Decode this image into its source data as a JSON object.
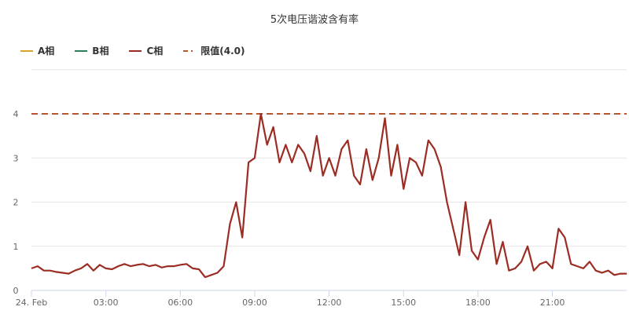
{
  "chart_data": {
    "type": "line",
    "title": "5次电压谐波含有率",
    "ylim": [
      0,
      5
    ],
    "yticks": [
      "0",
      "1",
      "2",
      "3",
      "4"
    ],
    "xticks": [
      "24. Feb",
      "03:00",
      "06:00",
      "09:00",
      "12:00",
      "15:00",
      "18:00",
      "21:00"
    ],
    "grid": true,
    "legend_position": "top-left",
    "legend": [
      {
        "name": "A相",
        "color": "#d4a72c",
        "style": "solid"
      },
      {
        "name": "B相",
        "color": "#2e7d5b",
        "style": "solid"
      },
      {
        "name": "C相",
        "color": "#9b2d24",
        "style": "solid"
      },
      {
        "name": "限值(4.0)",
        "color": "#b5562e",
        "style": "dashed"
      }
    ],
    "limit": 4.0,
    "series": [
      {
        "name": "C相",
        "color": "#9b2d24",
        "values": [
          [
            "00:00",
            0.5
          ],
          [
            "00:15",
            0.55
          ],
          [
            "00:30",
            0.45
          ],
          [
            "00:45",
            0.45
          ],
          [
            "01:00",
            0.42
          ],
          [
            "01:15",
            0.4
          ],
          [
            "01:30",
            0.38
          ],
          [
            "01:45",
            0.45
          ],
          [
            "02:00",
            0.5
          ],
          [
            "02:15",
            0.6
          ],
          [
            "02:30",
            0.45
          ],
          [
            "02:45",
            0.58
          ],
          [
            "03:00",
            0.5
          ],
          [
            "03:15",
            0.48
          ],
          [
            "03:30",
            0.55
          ],
          [
            "03:45",
            0.6
          ],
          [
            "04:00",
            0.55
          ],
          [
            "04:15",
            0.58
          ],
          [
            "04:30",
            0.6
          ],
          [
            "04:45",
            0.55
          ],
          [
            "05:00",
            0.58
          ],
          [
            "05:15",
            0.52
          ],
          [
            "05:30",
            0.55
          ],
          [
            "05:45",
            0.55
          ],
          [
            "06:00",
            0.58
          ],
          [
            "06:15",
            0.6
          ],
          [
            "06:30",
            0.5
          ],
          [
            "06:45",
            0.48
          ],
          [
            "07:00",
            0.3
          ],
          [
            "07:15",
            0.35
          ],
          [
            "07:30",
            0.4
          ],
          [
            "07:45",
            0.55
          ],
          [
            "08:00",
            1.5
          ],
          [
            "08:15",
            2.0
          ],
          [
            "08:30",
            1.2
          ],
          [
            "08:45",
            2.9
          ],
          [
            "09:00",
            3.0
          ],
          [
            "09:15",
            4.0
          ],
          [
            "09:30",
            3.3
          ],
          [
            "09:45",
            3.7
          ],
          [
            "10:00",
            2.9
          ],
          [
            "10:15",
            3.3
          ],
          [
            "10:30",
            2.9
          ],
          [
            "10:45",
            3.3
          ],
          [
            "11:00",
            3.1
          ],
          [
            "11:15",
            2.7
          ],
          [
            "11:30",
            3.5
          ],
          [
            "11:45",
            2.6
          ],
          [
            "12:00",
            3.0
          ],
          [
            "12:15",
            2.6
          ],
          [
            "12:30",
            3.2
          ],
          [
            "12:45",
            3.4
          ],
          [
            "13:00",
            2.6
          ],
          [
            "13:15",
            2.4
          ],
          [
            "13:30",
            3.2
          ],
          [
            "13:45",
            2.5
          ],
          [
            "14:00",
            3.0
          ],
          [
            "14:15",
            3.9
          ],
          [
            "14:30",
            2.6
          ],
          [
            "14:45",
            3.3
          ],
          [
            "15:00",
            2.3
          ],
          [
            "15:15",
            3.0
          ],
          [
            "15:30",
            2.9
          ],
          [
            "15:45",
            2.6
          ],
          [
            "16:00",
            3.4
          ],
          [
            "16:15",
            3.2
          ],
          [
            "16:30",
            2.8
          ],
          [
            "16:45",
            2.0
          ],
          [
            "17:00",
            1.4
          ],
          [
            "17:15",
            0.8
          ],
          [
            "17:30",
            2.0
          ],
          [
            "17:45",
            0.9
          ],
          [
            "18:00",
            0.7
          ],
          [
            "18:15",
            1.2
          ],
          [
            "18:30",
            1.6
          ],
          [
            "18:45",
            0.6
          ],
          [
            "19:00",
            1.1
          ],
          [
            "19:15",
            0.45
          ],
          [
            "19:30",
            0.5
          ],
          [
            "19:45",
            0.65
          ],
          [
            "20:00",
            1.0
          ],
          [
            "20:15",
            0.45
          ],
          [
            "20:30",
            0.6
          ],
          [
            "20:45",
            0.65
          ],
          [
            "21:00",
            0.5
          ],
          [
            "21:15",
            1.4
          ],
          [
            "21:30",
            1.2
          ],
          [
            "21:45",
            0.6
          ],
          [
            "22:00",
            0.55
          ],
          [
            "22:15",
            0.5
          ],
          [
            "22:30",
            0.65
          ],
          [
            "22:45",
            0.45
          ],
          [
            "23:00",
            0.4
          ],
          [
            "23:15",
            0.45
          ],
          [
            "23:30",
            0.35
          ],
          [
            "23:45",
            0.38
          ]
        ]
      }
    ]
  }
}
